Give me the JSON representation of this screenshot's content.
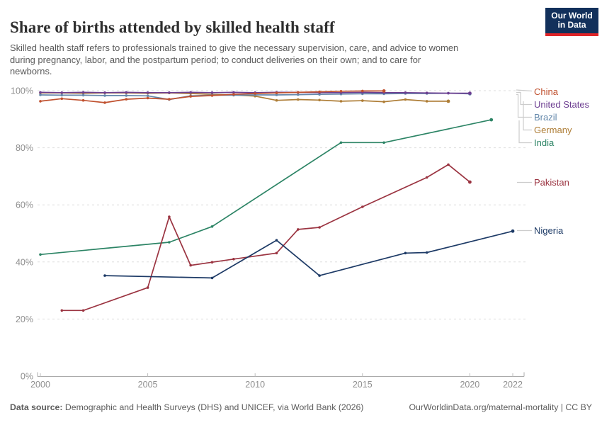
{
  "header": {
    "title": "Share of births attended by skilled health staff",
    "subtitle_lines": [
      "Skilled health staff refers to professionals trained to give the necessary supervision, care, and advice to women",
      "during pregnancy, labor, and the postpartum period; to conduct deliveries on their own; and to care for",
      "newborns."
    ],
    "logo": {
      "line1": "Our World",
      "line2": "in Data"
    }
  },
  "chart_data": {
    "type": "line",
    "title": "Share of births attended by skilled health staff",
    "xlabel": "",
    "ylabel": "",
    "xlim": [
      2000,
      2022
    ],
    "ylim": [
      0,
      100
    ],
    "grid": "dashed-horizontal",
    "legend_position": "right",
    "yticks": [
      "0%",
      "20%",
      "40%",
      "60%",
      "80%",
      "100%"
    ],
    "xticks": [
      2000,
      2005,
      2010,
      2015,
      2020,
      2022
    ],
    "series": [
      {
        "name": "China",
        "color": "#c0512f",
        "points": [
          [
            2000,
            96.3
          ],
          [
            2001,
            97.2
          ],
          [
            2002,
            96.6
          ],
          [
            2003,
            95.8
          ],
          [
            2004,
            97.0
          ],
          [
            2005,
            97.4
          ],
          [
            2006,
            97.0
          ],
          [
            2007,
            98.0
          ],
          [
            2008,
            98.3
          ],
          [
            2009,
            98.7
          ],
          [
            2010,
            99.0
          ],
          [
            2011,
            99.2
          ],
          [
            2012,
            99.4
          ],
          [
            2013,
            99.6
          ],
          [
            2014,
            99.8
          ],
          [
            2015,
            99.9
          ],
          [
            2016,
            99.9
          ]
        ]
      },
      {
        "name": "United States",
        "color": "#6d3e91",
        "points": [
          [
            2000,
            99.4
          ],
          [
            2001,
            99.3
          ],
          [
            2002,
            99.4
          ],
          [
            2003,
            99.3
          ],
          [
            2004,
            99.4
          ],
          [
            2005,
            99.3
          ],
          [
            2006,
            99.3
          ],
          [
            2007,
            99.4
          ],
          [
            2008,
            99.3
          ],
          [
            2009,
            99.4
          ],
          [
            2010,
            99.3
          ],
          [
            2011,
            99.4
          ],
          [
            2012,
            99.4
          ],
          [
            2013,
            99.3
          ],
          [
            2014,
            99.3
          ],
          [
            2015,
            99.4
          ],
          [
            2016,
            99.3
          ],
          [
            2017,
            99.3
          ],
          [
            2018,
            99.2
          ],
          [
            2019,
            99.1
          ],
          [
            2020,
            99.1
          ]
        ]
      },
      {
        "name": "Brazil",
        "color": "#6488ab",
        "points": [
          [
            2000,
            98.5
          ],
          [
            2001,
            98.4
          ],
          [
            2002,
            98.4
          ],
          [
            2003,
            98.3
          ],
          [
            2004,
            98.3
          ],
          [
            2005,
            98.2
          ],
          [
            2006,
            96.9
          ],
          [
            2007,
            98.2
          ],
          [
            2008,
            98.4
          ],
          [
            2009,
            98.4
          ],
          [
            2010,
            98.5
          ],
          [
            2011,
            98.5
          ],
          [
            2012,
            98.6
          ],
          [
            2013,
            98.7
          ],
          [
            2014,
            98.8
          ],
          [
            2015,
            98.9
          ],
          [
            2016,
            98.9
          ],
          [
            2017,
            99.0
          ],
          [
            2018,
            99.0
          ],
          [
            2019,
            99.1
          ],
          [
            2020,
            98.9
          ]
        ]
      },
      {
        "name": "Germany",
        "color": "#ae7d36",
        "points": [
          [
            2000,
            99.2
          ],
          [
            2001,
            99.2
          ],
          [
            2002,
            99.1
          ],
          [
            2003,
            99.2
          ],
          [
            2004,
            99.2
          ],
          [
            2005,
            99.1
          ],
          [
            2006,
            99.2
          ],
          [
            2007,
            99.0
          ],
          [
            2008,
            98.7
          ],
          [
            2009,
            98.5
          ],
          [
            2010,
            98.1
          ],
          [
            2011,
            96.6
          ],
          [
            2012,
            96.9
          ],
          [
            2013,
            96.7
          ],
          [
            2014,
            96.3
          ],
          [
            2015,
            96.5
          ],
          [
            2016,
            96.1
          ],
          [
            2017,
            96.9
          ],
          [
            2018,
            96.3
          ],
          [
            2019,
            96.3
          ]
        ]
      },
      {
        "name": "India",
        "color": "#2c8465",
        "points": [
          [
            2000,
            42.6
          ],
          [
            2006,
            46.9
          ],
          [
            2008,
            52.4
          ],
          [
            2014,
            81.8
          ],
          [
            2016,
            81.8
          ],
          [
            2021,
            89.8
          ]
        ]
      },
      {
        "name": "Pakistan",
        "color": "#9b3441",
        "points": [
          [
            2001,
            23.0
          ],
          [
            2002,
            23.0
          ],
          [
            2005,
            31.0
          ],
          [
            2006,
            55.8
          ],
          [
            2007,
            38.8
          ],
          [
            2008,
            39.9
          ],
          [
            2009,
            41.0
          ],
          [
            2011,
            43.1
          ],
          [
            2012,
            51.4
          ],
          [
            2013,
            52.1
          ],
          [
            2015,
            59.3
          ],
          [
            2018,
            69.6
          ],
          [
            2019,
            74.1
          ],
          [
            2020,
            68.0
          ]
        ]
      },
      {
        "name": "Nigeria",
        "color": "#1d3a66",
        "points": [
          [
            2003,
            35.2
          ],
          [
            2008,
            34.4
          ],
          [
            2011,
            47.6
          ],
          [
            2013,
            35.2
          ],
          [
            2017,
            43.1
          ],
          [
            2018,
            43.3
          ],
          [
            2022,
            50.8
          ]
        ]
      }
    ]
  },
  "footer": {
    "source_label": "Data source:",
    "source_text": " Demographic and Health Surveys (DHS) and UNICEF, via World Bank (2026)",
    "link_text": "OurWorldinData.org/maternal-mortality | CC BY"
  }
}
